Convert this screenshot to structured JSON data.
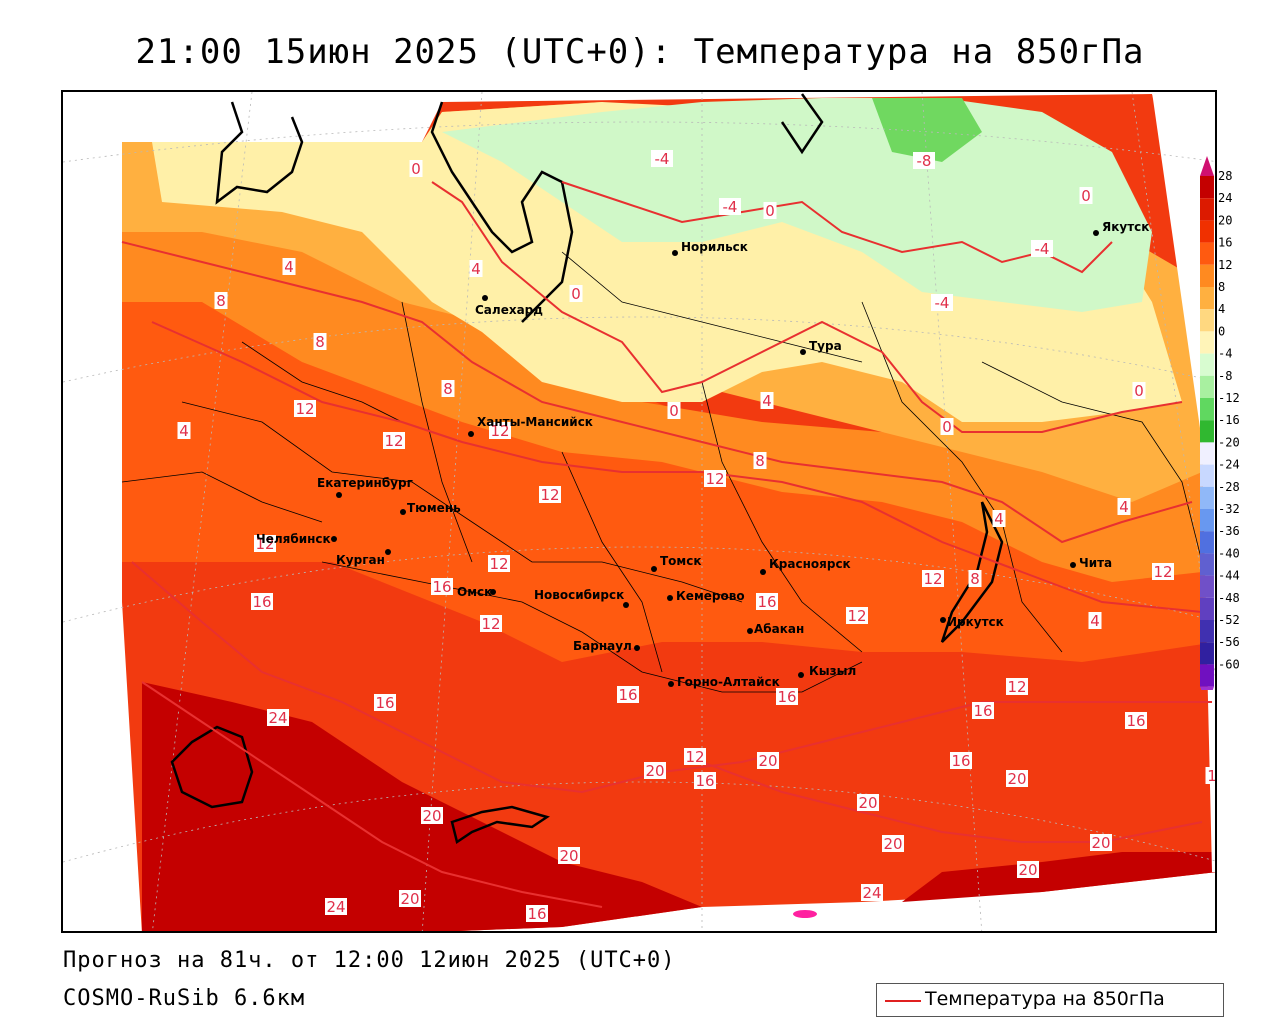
{
  "header": {
    "title": "21:00 15июн 2025 (UTC+0): Температура на 850гПа"
  },
  "footer": {
    "forecast": "Прогноз на 81ч. от 12:00 12июн 2025 (UTC+0)",
    "model": "COSMO-RuSib 6.6км"
  },
  "legend": {
    "series_label": "Температура на 850гПа",
    "line_color": "#e02020"
  },
  "colorbar": {
    "values": [
      "28",
      "24",
      "20",
      "16",
      "12",
      "8",
      "4",
      "0",
      "-4",
      "-8",
      "-12",
      "-16",
      "-20",
      "-24",
      "-28",
      "-32",
      "-36",
      "-40",
      "-44",
      "-48",
      "-52",
      "-56",
      "-60"
    ],
    "colors": [
      "#c40000",
      "#dc1a00",
      "#f03000",
      "#ff5a10",
      "#ff8a20",
      "#ffb040",
      "#ffd880",
      "#fff4b8",
      "#d8fcd0",
      "#a8f0a0",
      "#60d860",
      "#30b830",
      "#f0f0ff",
      "#c8d8ff",
      "#90b8f8",
      "#6898f0",
      "#5070e0",
      "#6060d0",
      "#7050c8",
      "#6040c0",
      "#4030b0",
      "#3020a0",
      "#7010c0"
    ],
    "top_arrow_color": "#d01070",
    "bottom_arrow_color": "#a030d0"
  },
  "cities": [
    {
      "name": "Якутск"
    },
    {
      "name": "Норильск"
    },
    {
      "name": "Салехард"
    },
    {
      "name": "Тура"
    },
    {
      "name": "Ханты-Мансийск"
    },
    {
      "name": "Екатеринбург"
    },
    {
      "name": "Тюмень"
    },
    {
      "name": "Челябинск"
    },
    {
      "name": "Курган"
    },
    {
      "name": "Томск"
    },
    {
      "name": "Красноярск"
    },
    {
      "name": "Омск"
    },
    {
      "name": "Новосибирск"
    },
    {
      "name": "Кемерово"
    },
    {
      "name": "Абакан"
    },
    {
      "name": "Барнаул"
    },
    {
      "name": "Горно-Алтайск"
    },
    {
      "name": "Кызыл"
    },
    {
      "name": "Иркутск"
    },
    {
      "name": "Чита"
    }
  ],
  "isotherm_labels": [
    {
      "value": "0"
    },
    {
      "value": "-4"
    },
    {
      "value": "-4"
    },
    {
      "value": "0"
    },
    {
      "value": "-8"
    },
    {
      "value": "0"
    },
    {
      "value": "-4"
    },
    {
      "value": "-4"
    },
    {
      "value": "4"
    },
    {
      "value": "4"
    },
    {
      "value": "0"
    },
    {
      "value": "8"
    },
    {
      "value": "8"
    },
    {
      "value": "0"
    },
    {
      "value": "4"
    },
    {
      "value": "8"
    },
    {
      "value": "12"
    },
    {
      "value": "4"
    },
    {
      "value": "0"
    },
    {
      "value": "0"
    },
    {
      "value": "12"
    },
    {
      "value": "12"
    },
    {
      "value": "8"
    },
    {
      "value": "12"
    },
    {
      "value": "4"
    },
    {
      "value": "12"
    },
    {
      "value": "4"
    },
    {
      "value": "12"
    },
    {
      "value": "16"
    },
    {
      "value": "12"
    },
    {
      "value": "12"
    },
    {
      "value": "16"
    },
    {
      "value": "12"
    },
    {
      "value": "8"
    },
    {
      "value": "12"
    },
    {
      "value": "16"
    },
    {
      "value": "16"
    },
    {
      "value": "16"
    },
    {
      "value": "12"
    },
    {
      "value": "20"
    },
    {
      "value": "16"
    },
    {
      "value": "24"
    },
    {
      "value": "12"
    },
    {
      "value": "16"
    },
    {
      "value": "20"
    },
    {
      "value": "20"
    },
    {
      "value": "16"
    },
    {
      "value": "20"
    },
    {
      "value": "16"
    },
    {
      "value": "16"
    },
    {
      "value": "20"
    },
    {
      "value": "20"
    },
    {
      "value": "20"
    },
    {
      "value": "20"
    },
    {
      "value": "20"
    },
    {
      "value": "20"
    },
    {
      "value": "24"
    },
    {
      "value": "24"
    },
    {
      "value": "16"
    },
    {
      "value": "12"
    },
    {
      "value": "4"
    },
    {
      "value": "1"
    }
  ]
}
